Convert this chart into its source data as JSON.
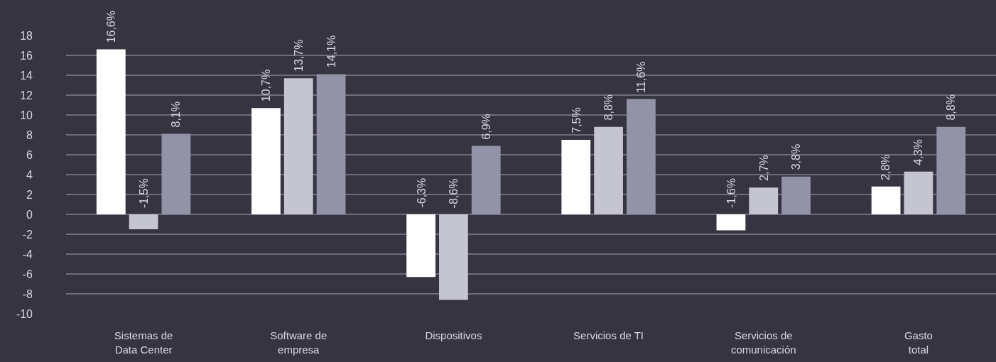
{
  "chart_data": {
    "type": "bar",
    "categories": [
      "Sistemas de\nData Center",
      "Software de\nempresa",
      "Dispositivos",
      "Servicios de TI",
      "Servicios de\ncomunicación",
      "Gasto\ntotal"
    ],
    "series": [
      {
        "color": "#ffffff",
        "values": [
          16.6,
          10.7,
          -6.3,
          7.5,
          -1.6,
          2.8
        ],
        "value_labels": [
          "16,6%",
          "10,7%",
          "-6,3%",
          "7,5%",
          "-1,6%",
          "2,8%"
        ]
      },
      {
        "color": "#c5c5cf",
        "values": [
          -1.5,
          13.7,
          -8.6,
          8.8,
          2.7,
          4.3
        ],
        "value_labels": [
          "-1,5%",
          "13,7%",
          "-8,6%",
          "8,8%",
          "2,7%",
          "4,3%"
        ]
      },
      {
        "color": "#9393a7",
        "values": [
          8.1,
          14.1,
          6.9,
          11.6,
          3.8,
          8.8
        ],
        "value_labels": [
          "8,1%",
          "14,1%",
          "6,9%",
          "11,6%",
          "3,8%",
          "8,8%"
        ]
      }
    ],
    "ylim": [
      -10,
      18
    ],
    "yticks": [
      -10,
      -8,
      -6,
      -4,
      -2,
      0,
      2,
      4,
      6,
      8,
      10,
      12,
      14,
      16,
      18
    ],
    "grid": "y"
  }
}
